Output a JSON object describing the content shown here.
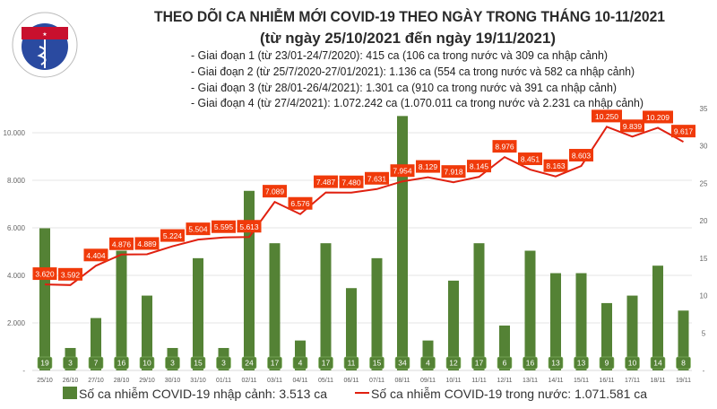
{
  "logo": {
    "text_top": "BỘ Y TẾ",
    "text_bottom": "MINISTRY OF HEALTH"
  },
  "title": "THEO DÕI CA NHIỄM MỚI COVID-19 THEO NGÀY TRONG THÁNG 10-11/2021",
  "subtitle": "(từ ngày 25/10/2021 đến ngày 19/11/2021)",
  "notes": [
    "- Giai đoạn 1 (từ 23/01-24/7/2020): 415 ca (106 ca trong nước và 309 ca nhập cảnh)",
    "- Giai đoạn 2 (từ 25/7/2020-27/01/2021): 1.136 ca (554 ca trong nước và 582 ca nhập cảnh)",
    "- Giai đoạn 3 (từ 28/01-26/4/2021): 1.301 ca (910 ca trong nước và 391 ca nhập cảnh)",
    "- Giai đoạn 4 (từ 27/4/2021): 1.072.242 ca (1.070.011 ca trong nước và 2.231 ca nhập cảnh)"
  ],
  "chart_data": {
    "type": "bar+line",
    "categories": [
      "25/10",
      "26/10",
      "27/10",
      "28/10",
      "29/10",
      "30/10",
      "31/10",
      "01/11",
      "02/11",
      "03/11",
      "04/11",
      "05/11",
      "06/11",
      "07/11",
      "08/11",
      "09/11",
      "10/11",
      "11/11",
      "12/11",
      "13/11",
      "14/11",
      "15/11",
      "16/11",
      "17/11",
      "18/11",
      "19/11"
    ],
    "series": [
      {
        "name": "Số ca nhiễm COVID-19 nhập cảnh: 3.513 ca",
        "type": "bar",
        "axis": "right",
        "color": "#548235",
        "values": [
          19,
          3,
          7,
          16,
          10,
          3,
          15,
          3,
          24,
          17,
          4,
          17,
          11,
          15,
          34,
          4,
          12,
          17,
          6,
          16,
          13,
          13,
          9,
          10,
          14,
          8
        ]
      },
      {
        "name": "Số ca nhiễm COVID-19 trong nước: 1.071.581 ca",
        "type": "line",
        "axis": "left",
        "color": "#e02010",
        "values": [
          3620,
          3592,
          4404,
          4876,
          4889,
          5224,
          5504,
          5595,
          5613,
          7089,
          6576,
          7487,
          7480,
          7631,
          7954,
          8129,
          7918,
          8145,
          8976,
          8451,
          8163,
          8603,
          10250,
          9839,
          10209,
          9617
        ],
        "labels": [
          "3.620",
          "3.592",
          "4.404",
          "4.876",
          "4.889",
          "5.224",
          "5.504",
          "5.595",
          "5.613",
          "7.089",
          "6.576",
          "7.487",
          "7.480",
          "7.631",
          "7.954",
          "8.129",
          "7.918",
          "8.145",
          "8.976",
          "8.451",
          "8.163",
          "8.603",
          "10.250",
          "9.839",
          "10.209",
          "9.617"
        ]
      }
    ],
    "y_left": {
      "range": [
        0,
        10000
      ],
      "ticks": [
        "-",
        "2.000",
        "4.000",
        "6.000",
        "8.000",
        "10.000"
      ]
    },
    "y_right": {
      "range": [
        0,
        35
      ],
      "ticks": [
        "-",
        "5",
        "10",
        "15",
        "20",
        "25",
        "30",
        "35"
      ]
    },
    "grid": true,
    "legend": "bottom"
  }
}
